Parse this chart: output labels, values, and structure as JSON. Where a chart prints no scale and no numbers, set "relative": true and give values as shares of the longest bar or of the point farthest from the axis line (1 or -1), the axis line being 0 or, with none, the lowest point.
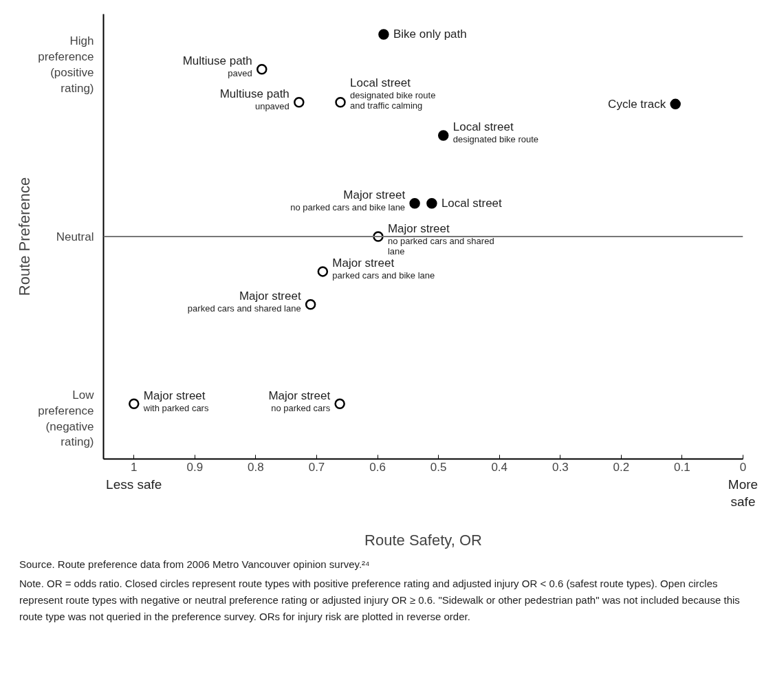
{
  "chart_data": {
    "type": "scatter",
    "xlabel": "Route Safety, OR",
    "ylabel": "Route Preference",
    "xlim": [
      1.05,
      0
    ],
    "relative": true,
    "xticks": [
      1,
      0.9,
      0.8,
      0.7,
      0.6,
      0.5,
      0.4,
      0.3,
      0.2,
      0.1,
      0
    ],
    "grid": false,
    "marker": "circle",
    "ref_lines": [
      {
        "axis": "y",
        "value": 0,
        "label": "Neutral",
        "color": "#777777"
      }
    ],
    "series": [
      {
        "color": "#000000",
        "x": [
          0.59,
          0.111,
          0.492,
          0.539,
          0.511
        ],
        "values": [
          1.0,
          0.655,
          0.5,
          0.164,
          0.164
        ]
      },
      {
        "color": "#ffffff",
        "x": [
          0.79,
          0.729,
          0.661,
          0.599,
          0.69,
          0.71,
          1.0,
          0.662
        ],
        "values": [
          0.827,
          0.664,
          0.664,
          0.0,
          -0.173,
          -0.336,
          -0.827,
          -0.827
        ]
      }
    ],
    "annotations": [
      {
        "text": "Bike only path",
        "x": 0.59,
        "y": 1.0
      },
      {
        "text": "Multiuse path\npaved",
        "x": 0.79,
        "y": 0.827
      },
      {
        "text": "Multiuse path\nunpaved",
        "x": 0.729,
        "y": 0.664
      },
      {
        "text": "Local street\ndesignated bike route\nand traffic calming",
        "x": 0.661,
        "y": 0.664
      },
      {
        "text": "Cycle track",
        "x": 0.111,
        "y": 0.655
      },
      {
        "text": "Local street\ndesignated bike route",
        "x": 0.492,
        "y": 0.5
      },
      {
        "text": "Major street\nno parked cars and bike lane",
        "x": 0.539,
        "y": 0.164
      },
      {
        "text": "Local street",
        "x": 0.511,
        "y": 0.164
      },
      {
        "text": "Major street\nno parked cars and shared\nlane",
        "x": 0.599,
        "y": 0.0
      },
      {
        "text": "Major street\nparked cars and bike lane",
        "x": 0.69,
        "y": -0.173
      },
      {
        "text": "Major street\nparked cars and shared lane",
        "x": 0.71,
        "y": -0.336
      },
      {
        "text": "Major street\nwith parked cars",
        "x": 1.0,
        "y": -0.827
      },
      {
        "text": "Major street\nno parked cars",
        "x": 0.662,
        "y": -0.827
      },
      "High\npreference\n(positive\nrating)",
      "Low\npreference\n(negative\nrating)",
      "Less safe",
      "More\nsafe",
      "Source. Route preference data from 2006 Metro Vancouver opinion survey.²⁴",
      "Note. OR = odds ratio. Closed circles represent route types with positive preference rating and adjusted injury OR < 0.6 (safest route types). Open circles represent route types with negative or neutral preference rating or adjusted injury OR ≥ 0.6. \"Sidewalk or other pedestrian path\" was not included because this route type was not queried in the preference survey. ORs for injury risk are plotted in reverse order."
    ]
  }
}
